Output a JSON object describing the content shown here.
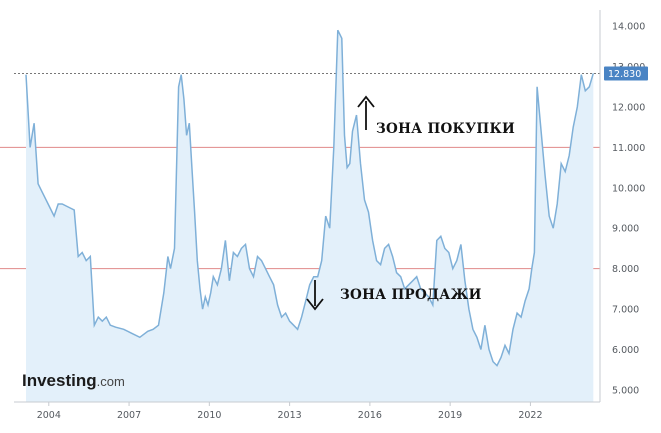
{
  "chart_data": {
    "type": "area",
    "title": "",
    "xlabel": "",
    "ylabel": "",
    "ylim": [
      4.7,
      14.4
    ],
    "xlim": [
      2002.7,
      2024.6
    ],
    "y_ticks": [
      "5.000",
      "6.000",
      "7.000",
      "8.000",
      "9.000",
      "10.000",
      "11.000",
      "12.000",
      "13.000",
      "14.000"
    ],
    "x_ticks": [
      "2004",
      "2007",
      "2010",
      "2013",
      "2016",
      "2019",
      "2022"
    ],
    "last_value": 12.83,
    "last_value_label": "12.830",
    "reference_lines": [
      11.0,
      8.0
    ],
    "annotations": [
      {
        "text": "ЗОНА ПОКУПКИ",
        "arrow": "up"
      },
      {
        "text": "ЗОНА ПРОДАЖИ",
        "arrow": "down"
      }
    ],
    "colors": {
      "line": "#7fb0d8",
      "fill": "#e3f0fa",
      "reference_line": "#e08a8a",
      "last_value_dotted": "#777777",
      "last_value_badge": "#4a84c4"
    },
    "series": [
      {
        "x": [
          2003.15,
          2003.3,
          2003.45,
          2003.6,
          2003.75,
          2003.9,
          2004.05,
          2004.2,
          2004.35,
          2004.5,
          2004.65,
          2004.8,
          2004.95,
          2005.1,
          2005.25,
          2005.4,
          2005.55,
          2005.7,
          2005.85,
          2006.0,
          2006.15,
          2006.3,
          2006.5,
          2006.8,
          2007.1,
          2007.4,
          2007.7,
          2007.9,
          2008.1,
          2008.3,
          2008.45,
          2008.55,
          2008.7,
          2008.85,
          2008.95,
          2009.05,
          2009.15,
          2009.25,
          2009.35,
          2009.45,
          2009.55,
          2009.65,
          2009.75,
          2009.85,
          2009.95,
          2010.05,
          2010.15,
          2010.3,
          2010.45,
          2010.6,
          2010.75,
          2010.9,
          2011.05,
          2011.2,
          2011.35,
          2011.5,
          2011.65,
          2011.8,
          2011.95,
          2012.1,
          2012.25,
          2012.4,
          2012.55,
          2012.7,
          2012.85,
          2013.0,
          2013.15,
          2013.3,
          2013.45,
          2013.6,
          2013.75,
          2013.9,
          2014.05,
          2014.2,
          2014.35,
          2014.5,
          2014.65,
          2014.8,
          2014.95,
          2015.05,
          2015.15,
          2015.25,
          2015.35,
          2015.5,
          2015.65,
          2015.8,
          2015.95,
          2016.1,
          2016.25,
          2016.4,
          2016.55,
          2016.7,
          2016.85,
          2017.0,
          2017.15,
          2017.3,
          2017.45,
          2017.6,
          2017.75,
          2017.9,
          2018.05,
          2018.2,
          2018.35,
          2018.5,
          2018.65,
          2018.8,
          2018.95,
          2019.1,
          2019.25,
          2019.4,
          2019.55,
          2019.7,
          2019.85,
          2020.0,
          2020.15,
          2020.3,
          2020.45,
          2020.6,
          2020.75,
          2020.9,
          2021.05,
          2021.2,
          2021.35,
          2021.5,
          2021.65,
          2021.8,
          2021.95,
          2022.05,
          2022.15,
          2022.25,
          2022.4,
          2022.55,
          2022.7,
          2022.85,
          2023.0,
          2023.15,
          2023.3,
          2023.45,
          2023.6,
          2023.75,
          2023.9,
          2024.05,
          2024.2,
          2024.35
        ],
        "y": [
          12.8,
          11.0,
          11.6,
          10.1,
          9.9,
          9.7,
          9.5,
          9.3,
          9.6,
          9.6,
          9.55,
          9.5,
          9.45,
          8.3,
          8.4,
          8.2,
          8.3,
          6.6,
          6.8,
          6.7,
          6.8,
          6.6,
          6.55,
          6.5,
          6.4,
          6.3,
          6.45,
          6.5,
          6.6,
          7.4,
          8.3,
          8.0,
          8.5,
          12.5,
          12.8,
          12.2,
          11.3,
          11.6,
          10.5,
          9.4,
          8.2,
          7.5,
          7.0,
          7.3,
          7.1,
          7.4,
          7.8,
          7.6,
          8.0,
          8.7,
          7.7,
          8.4,
          8.3,
          8.5,
          8.6,
          8.0,
          7.8,
          8.3,
          8.2,
          8.0,
          7.8,
          7.6,
          7.1,
          6.8,
          6.9,
          6.7,
          6.6,
          6.5,
          6.8,
          7.2,
          7.6,
          7.8,
          7.8,
          8.2,
          9.3,
          9.0,
          11.0,
          13.9,
          13.7,
          11.3,
          10.5,
          10.6,
          11.4,
          11.8,
          10.6,
          9.7,
          9.4,
          8.7,
          8.2,
          8.1,
          8.5,
          8.6,
          8.3,
          7.9,
          7.8,
          7.5,
          7.6,
          7.7,
          7.8,
          7.5,
          7.4,
          7.3,
          7.1,
          8.7,
          8.8,
          8.5,
          8.4,
          8.0,
          8.2,
          8.6,
          7.7,
          7.0,
          6.5,
          6.3,
          6.0,
          6.6,
          6.0,
          5.7,
          5.6,
          5.8,
          6.1,
          5.9,
          6.5,
          6.9,
          6.8,
          7.2,
          7.5,
          8.0,
          8.4,
          12.5,
          11.4,
          10.3,
          9.3,
          9.0,
          9.6,
          10.6,
          10.4,
          10.8,
          11.5,
          12.0,
          12.8,
          12.4,
          12.5,
          12.83
        ]
      }
    ]
  },
  "brand": {
    "name": "Investing",
    "suffix": ".com"
  }
}
